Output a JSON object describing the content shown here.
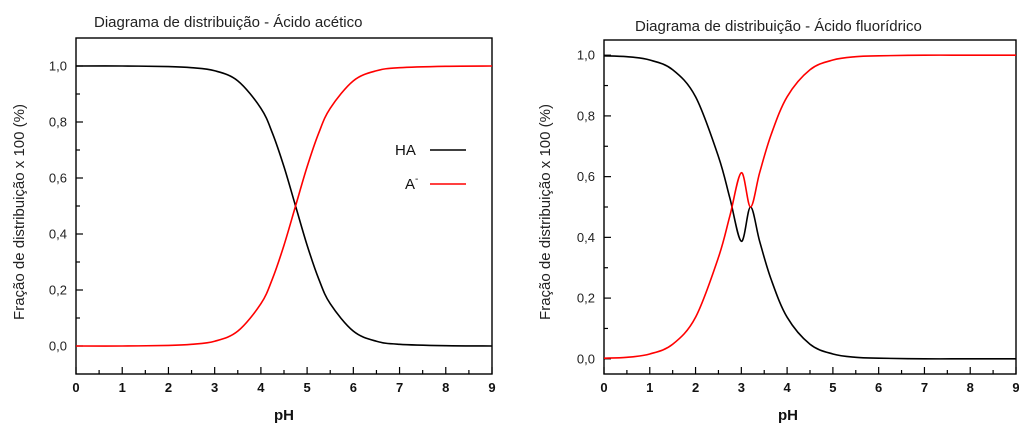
{
  "chart_data": [
    {
      "type": "line",
      "title": "Diagrama de distribuição - Ácido acético",
      "xlabel": "pH",
      "ylabel": "Fração de distribuição x 100 (%)",
      "xlim": [
        0,
        9
      ],
      "ylim": [
        -0.1,
        1.1
      ],
      "xticks": [
        "0",
        "1",
        "2",
        "3",
        "4",
        "5",
        "6",
        "7",
        "8",
        "9"
      ],
      "yticks": [
        "0,0",
        "0,2",
        "0,4",
        "0,6",
        "0,8",
        "1,0"
      ],
      "legend_position": "center-right",
      "x": [
        0,
        1,
        2,
        2.5,
        3,
        3.5,
        4,
        4.25,
        4.5,
        4.75,
        5,
        5.25,
        5.5,
        6,
        6.5,
        7,
        8,
        9
      ],
      "series": [
        {
          "name": "HA",
          "color": "#000000",
          "values": [
            1.0,
            1.0,
            0.998,
            0.994,
            0.983,
            0.947,
            0.849,
            0.76,
            0.64,
            0.5,
            0.36,
            0.24,
            0.151,
            0.053,
            0.017,
            0.006,
            0.001,
            0.0
          ]
        },
        {
          "name": "A",
          "superscript": "-",
          "color": "#ff0000",
          "values": [
            0.0,
            0.0,
            0.002,
            0.006,
            0.017,
            0.053,
            0.151,
            0.24,
            0.36,
            0.5,
            0.64,
            0.76,
            0.849,
            0.947,
            0.983,
            0.994,
            0.999,
            1.0
          ]
        }
      ]
    },
    {
      "type": "line",
      "title": "Diagrama de distribuição - Ácido fluorídrico",
      "xlabel": "pH",
      "ylabel": "Fração de distribuição x 100 (%)",
      "xlim": [
        0,
        9
      ],
      "ylim": [
        -0.05,
        1.05
      ],
      "xticks": [
        "0",
        "1",
        "2",
        "3",
        "4",
        "5",
        "6",
        "7",
        "8",
        "9"
      ],
      "yticks": [
        "0,0",
        "0,2",
        "0,4",
        "0,6",
        "0,8",
        "1,0"
      ],
      "x": [
        0,
        0.5,
        1,
        1.5,
        2,
        2.5,
        2.75,
        3,
        3.2,
        3.4,
        3.65,
        4,
        4.5,
        5,
        5.5,
        6,
        7,
        8,
        9
      ],
      "series": [
        {
          "color": "#000000",
          "values": [
            0.998,
            0.995,
            0.984,
            0.952,
            0.863,
            0.666,
            0.529,
            0.387,
            0.5,
            0.387,
            0.262,
            0.137,
            0.048,
            0.016,
            0.005,
            0.002,
            0.0,
            0.0,
            0.0
          ]
        },
        {
          "color": "#ff0000",
          "values": [
            0.002,
            0.005,
            0.016,
            0.048,
            0.137,
            0.334,
            0.471,
            0.613,
            0.5,
            0.613,
            0.738,
            0.863,
            0.952,
            0.984,
            0.995,
            0.998,
            1.0,
            1.0,
            1.0
          ]
        }
      ]
    }
  ]
}
